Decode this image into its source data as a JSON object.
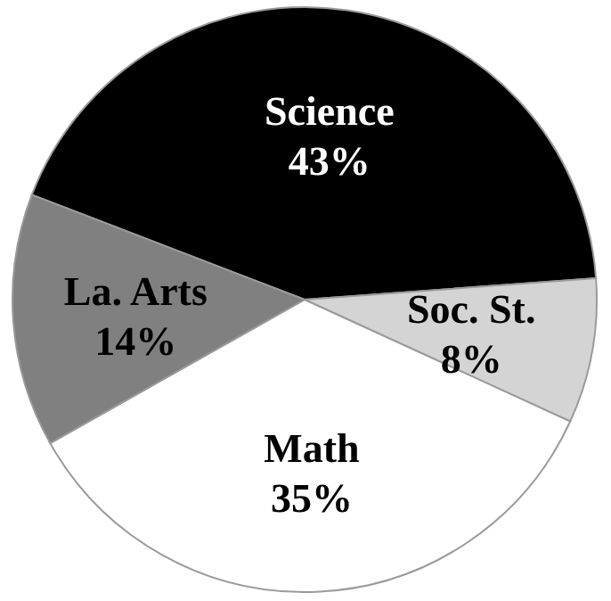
{
  "chart_data": {
    "type": "pie",
    "categories": [
      "Science",
      "Soc. St.",
      "Math",
      "La. Arts"
    ],
    "values": [
      43,
      8,
      35,
      14
    ],
    "value_labels": [
      "43%",
      "8%",
      "35%",
      "14%"
    ],
    "colors": [
      "#000000",
      "#d4d4d4",
      "#ffffff",
      "#808080"
    ]
  }
}
